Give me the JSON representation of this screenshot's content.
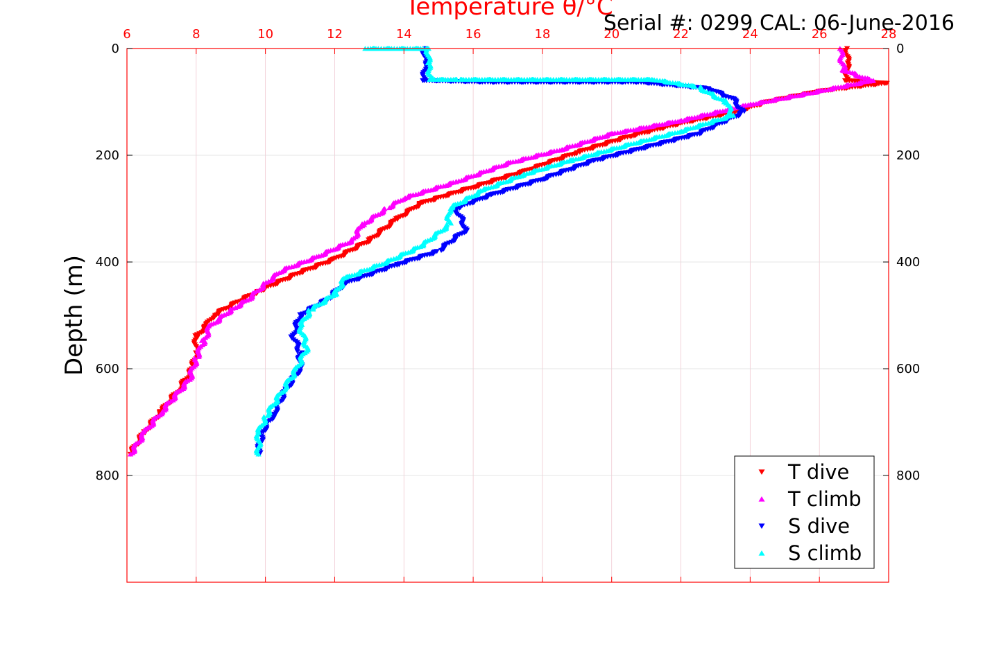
{
  "chart_data": {
    "type": "scatter",
    "title": "Temperature θ/°C",
    "annotation": "Serial #: 0299 CAL: 06-June-2016",
    "ylabel": "Depth (m)",
    "xlabel": "",
    "xlim": [
      6,
      28
    ],
    "ylim": [
      0,
      1000
    ],
    "y_reversed": true,
    "x_ticks": [
      "6",
      "8",
      "10",
      "12",
      "14",
      "16",
      "18",
      "20",
      "22",
      "24",
      "26",
      "28"
    ],
    "y_ticks": [
      "0",
      "200",
      "400",
      "600",
      "800"
    ],
    "grid": true,
    "legend_position": "bottom-right",
    "colors": {
      "axis": "#ff0000",
      "grid": "#dddddd"
    },
    "series": [
      {
        "name": "T dive",
        "marker": "triangle-down",
        "color": "#ff0000",
        "points": [
          [
            26.8,
            0
          ],
          [
            26.8,
            30
          ],
          [
            26.8,
            60
          ],
          [
            27.9,
            65
          ],
          [
            26.0,
            80
          ],
          [
            24.5,
            100
          ],
          [
            23.5,
            120
          ],
          [
            22.0,
            140
          ],
          [
            20.5,
            165
          ],
          [
            19.0,
            195
          ],
          [
            17.5,
            230
          ],
          [
            16.0,
            260
          ],
          [
            14.5,
            290
          ],
          [
            13.8,
            320
          ],
          [
            13.0,
            360
          ],
          [
            12.0,
            395
          ],
          [
            11.0,
            420
          ],
          [
            9.8,
            455
          ],
          [
            9.2,
            475
          ],
          [
            8.5,
            500
          ],
          [
            8.3,
            520
          ],
          [
            8.0,
            540
          ],
          [
            8.0,
            570
          ],
          [
            7.9,
            600
          ],
          [
            7.5,
            640
          ],
          [
            7.0,
            680
          ],
          [
            6.5,
            720
          ],
          [
            6.1,
            760
          ]
        ]
      },
      {
        "name": "T climb",
        "marker": "triangle-up",
        "color": "#ff00ff",
        "points": [
          [
            26.6,
            0
          ],
          [
            26.7,
            40
          ],
          [
            27.5,
            60
          ],
          [
            26.0,
            80
          ],
          [
            24.0,
            105
          ],
          [
            22.0,
            135
          ],
          [
            20.0,
            160
          ],
          [
            18.5,
            190
          ],
          [
            17.0,
            215
          ],
          [
            15.5,
            250
          ],
          [
            14.0,
            280
          ],
          [
            13.5,
            300
          ],
          [
            12.8,
            330
          ],
          [
            12.5,
            360
          ],
          [
            11.5,
            390
          ],
          [
            10.5,
            415
          ],
          [
            10.0,
            440
          ],
          [
            9.5,
            470
          ],
          [
            9.0,
            490
          ],
          [
            8.4,
            520
          ],
          [
            8.2,
            550
          ],
          [
            8.0,
            580
          ],
          [
            7.8,
            620
          ],
          [
            7.0,
            680
          ],
          [
            6.5,
            720
          ],
          [
            6.1,
            760
          ]
        ]
      },
      {
        "name": "S dive",
        "marker": "triangle-down",
        "color": "#0000ff",
        "points": [
          [
            14.6,
            0
          ],
          [
            14.6,
            30
          ],
          [
            14.6,
            60
          ],
          [
            16.5,
            63
          ],
          [
            20.8,
            63
          ],
          [
            22.8,
            75
          ],
          [
            23.5,
            95
          ],
          [
            23.8,
            120
          ],
          [
            22.5,
            160
          ],
          [
            21.0,
            185
          ],
          [
            19.5,
            210
          ],
          [
            18.0,
            245
          ],
          [
            16.5,
            275
          ],
          [
            15.5,
            300
          ],
          [
            15.8,
            340
          ],
          [
            15.0,
            380
          ],
          [
            13.8,
            405
          ],
          [
            12.3,
            440
          ],
          [
            11.8,
            470
          ],
          [
            11.0,
            500
          ],
          [
            10.8,
            540
          ],
          [
            11.0,
            570
          ],
          [
            11.0,
            600
          ],
          [
            10.6,
            640
          ],
          [
            10.2,
            690
          ],
          [
            9.9,
            720
          ],
          [
            9.8,
            760
          ]
        ]
      },
      {
        "name": "S climb",
        "marker": "triangle-up",
        "color": "#00ffff",
        "points": [
          [
            12.9,
            0
          ],
          [
            14.7,
            0
          ],
          [
            14.7,
            30
          ],
          [
            14.8,
            58
          ],
          [
            15.6,
            58
          ],
          [
            20.0,
            58
          ],
          [
            21.2,
            58
          ],
          [
            22.5,
            72
          ],
          [
            23.3,
            100
          ],
          [
            23.5,
            125
          ],
          [
            22.0,
            155
          ],
          [
            20.5,
            180
          ],
          [
            18.8,
            210
          ],
          [
            17.5,
            235
          ],
          [
            16.3,
            265
          ],
          [
            15.3,
            300
          ],
          [
            15.3,
            330
          ],
          [
            14.5,
            370
          ],
          [
            13.5,
            400
          ],
          [
            12.3,
            430
          ],
          [
            12.0,
            460
          ],
          [
            11.3,
            490
          ],
          [
            11.0,
            520
          ],
          [
            11.2,
            560
          ],
          [
            10.9,
            600
          ],
          [
            10.5,
            640
          ],
          [
            10.0,
            690
          ],
          [
            9.8,
            720
          ],
          [
            9.8,
            760
          ]
        ]
      }
    ]
  }
}
